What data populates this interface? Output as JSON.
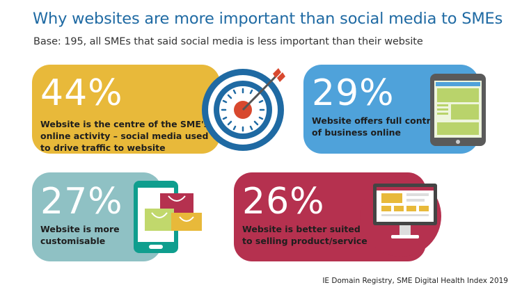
{
  "header": {
    "title": "Why websites are more important than social media to SMEs",
    "subtitle": "Base: 195, all SMEs that said social media is less important than their website"
  },
  "chart_data": {
    "type": "infographic",
    "unit": "%",
    "items": [
      {
        "value": 44,
        "label": "44%",
        "text_lines": [
          "Website is the centre of the SME's",
          "online activity – social media used",
          "to drive traffic to website"
        ],
        "color": "#e8b93a",
        "icon": "target-icon"
      },
      {
        "value": 29,
        "label": "29%",
        "text_lines": [
          "Website offers full control",
          "of business online"
        ],
        "color": "#4fa2da",
        "icon": "tablet-icon"
      },
      {
        "value": 27,
        "label": "27%",
        "text_lines": [
          "Website is more",
          "customisable"
        ],
        "color": "#8fc1c4",
        "icon": "phone-shopping-icon"
      },
      {
        "value": 26,
        "label": "26%",
        "text_lines": [
          "Website is better suited",
          "to selling product/service"
        ],
        "color": "#b5314f",
        "icon": "monitor-icon"
      }
    ]
  },
  "footer": {
    "source": "IE Domain Registry, SME Digital Health Index 2019"
  }
}
